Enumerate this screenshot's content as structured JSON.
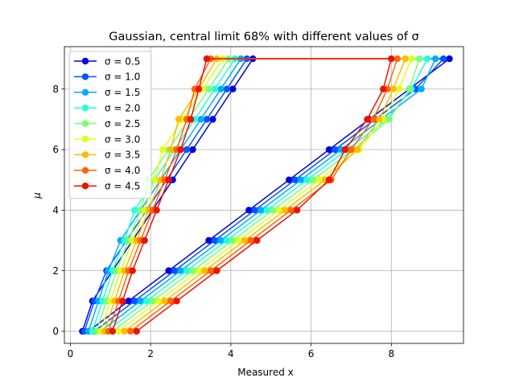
{
  "chart_data": {
    "type": "line",
    "title": "Gaussian, central limit 68% with different values of σ",
    "xlabel": "Measured x",
    "ylabel": "μ",
    "xlim": [
      -0.15,
      9.8
    ],
    "ylim": [
      -0.4,
      9.4
    ],
    "xticks": [
      0,
      2,
      4,
      6,
      8
    ],
    "yticks": [
      0,
      2,
      4,
      6,
      8
    ],
    "xtick_labels": [
      "0",
      "2",
      "4",
      "6",
      "8"
    ],
    "ytick_labels": [
      "0",
      "2",
      "4",
      "6",
      "8"
    ],
    "grid": true,
    "legend_position": "upper-left",
    "mu": [
      0,
      1,
      2,
      3,
      4,
      5,
      6,
      7,
      8,
      9
    ],
    "series": [
      {
        "name": "σ = 0.5",
        "color": "#0000dd",
        "lower": [
          0.3,
          0.55,
          1.05,
          1.55,
          2.05,
          2.55,
          3.05,
          3.55,
          4.05,
          4.55
        ],
        "upper": [
          0.45,
          1.45,
          2.45,
          3.45,
          4.45,
          5.45,
          6.45,
          7.45,
          8.45,
          9.45
        ]
      },
      {
        "name": "σ = 1.0",
        "color": "#0055ff",
        "lower": [
          0.35,
          0.6,
          0.9,
          1.4,
          1.9,
          2.4,
          2.9,
          3.4,
          3.9,
          4.4
        ],
        "upper": [
          0.6,
          1.6,
          2.6,
          3.6,
          4.6,
          5.6,
          6.6,
          7.6,
          8.6,
          9.3
        ]
      },
      {
        "name": "σ = 1.5",
        "color": "#00aaff",
        "lower": [
          0.45,
          0.7,
          0.95,
          1.25,
          1.75,
          2.25,
          2.75,
          3.25,
          3.75,
          4.25
        ],
        "upper": [
          0.75,
          1.75,
          2.75,
          3.75,
          4.75,
          5.75,
          6.75,
          7.75,
          8.75,
          9.1
        ]
      },
      {
        "name": "σ = 2.0",
        "color": "#22ffdd",
        "lower": [
          0.55,
          0.8,
          1.05,
          1.35,
          1.6,
          2.1,
          2.6,
          3.1,
          3.6,
          4.1
        ],
        "upper": [
          0.9,
          1.9,
          2.9,
          3.9,
          4.9,
          5.9,
          6.9,
          7.9,
          8.5,
          8.9
        ]
      },
      {
        "name": "σ = 2.5",
        "color": "#77ff77",
        "lower": [
          0.65,
          0.9,
          1.15,
          1.45,
          1.75,
          1.95,
          2.45,
          2.95,
          3.45,
          3.95
        ],
        "upper": [
          1.05,
          2.05,
          3.05,
          4.05,
          5.05,
          6.05,
          7.05,
          7.95,
          8.45,
          8.7
        ]
      },
      {
        "name": "σ = 3.0",
        "color": "#ddff22",
        "lower": [
          0.75,
          1.0,
          1.25,
          1.55,
          1.85,
          2.1,
          2.3,
          2.8,
          3.3,
          3.8
        ],
        "upper": [
          1.2,
          2.2,
          3.2,
          4.2,
          5.2,
          6.2,
          7.2,
          7.8,
          8.2,
          8.5
        ]
      },
      {
        "name": "σ = 3.5",
        "color": "#ffbb00",
        "lower": [
          0.85,
          1.1,
          1.35,
          1.65,
          1.95,
          2.25,
          2.5,
          2.7,
          3.2,
          3.65
        ],
        "upper": [
          1.35,
          2.35,
          3.35,
          4.35,
          5.35,
          6.35,
          7.15,
          7.7,
          8.05,
          8.35
        ]
      },
      {
        "name": "σ = 4.0",
        "color": "#ff6600",
        "lower": [
          0.95,
          1.2,
          1.45,
          1.75,
          2.05,
          2.35,
          2.65,
          2.9,
          3.1,
          3.5
        ],
        "upper": [
          1.5,
          2.5,
          3.5,
          4.5,
          5.5,
          6.5,
          7.0,
          7.55,
          7.9,
          8.15
        ]
      },
      {
        "name": "σ = 4.5",
        "color": "#ee1100",
        "lower": [
          1.05,
          1.3,
          1.55,
          1.85,
          2.15,
          2.45,
          2.75,
          3.0,
          3.2,
          3.4
        ],
        "upper": [
          1.65,
          2.65,
          3.65,
          4.65,
          5.65,
          6.45,
          6.85,
          7.4,
          7.8,
          8.0
        ]
      }
    ]
  }
}
